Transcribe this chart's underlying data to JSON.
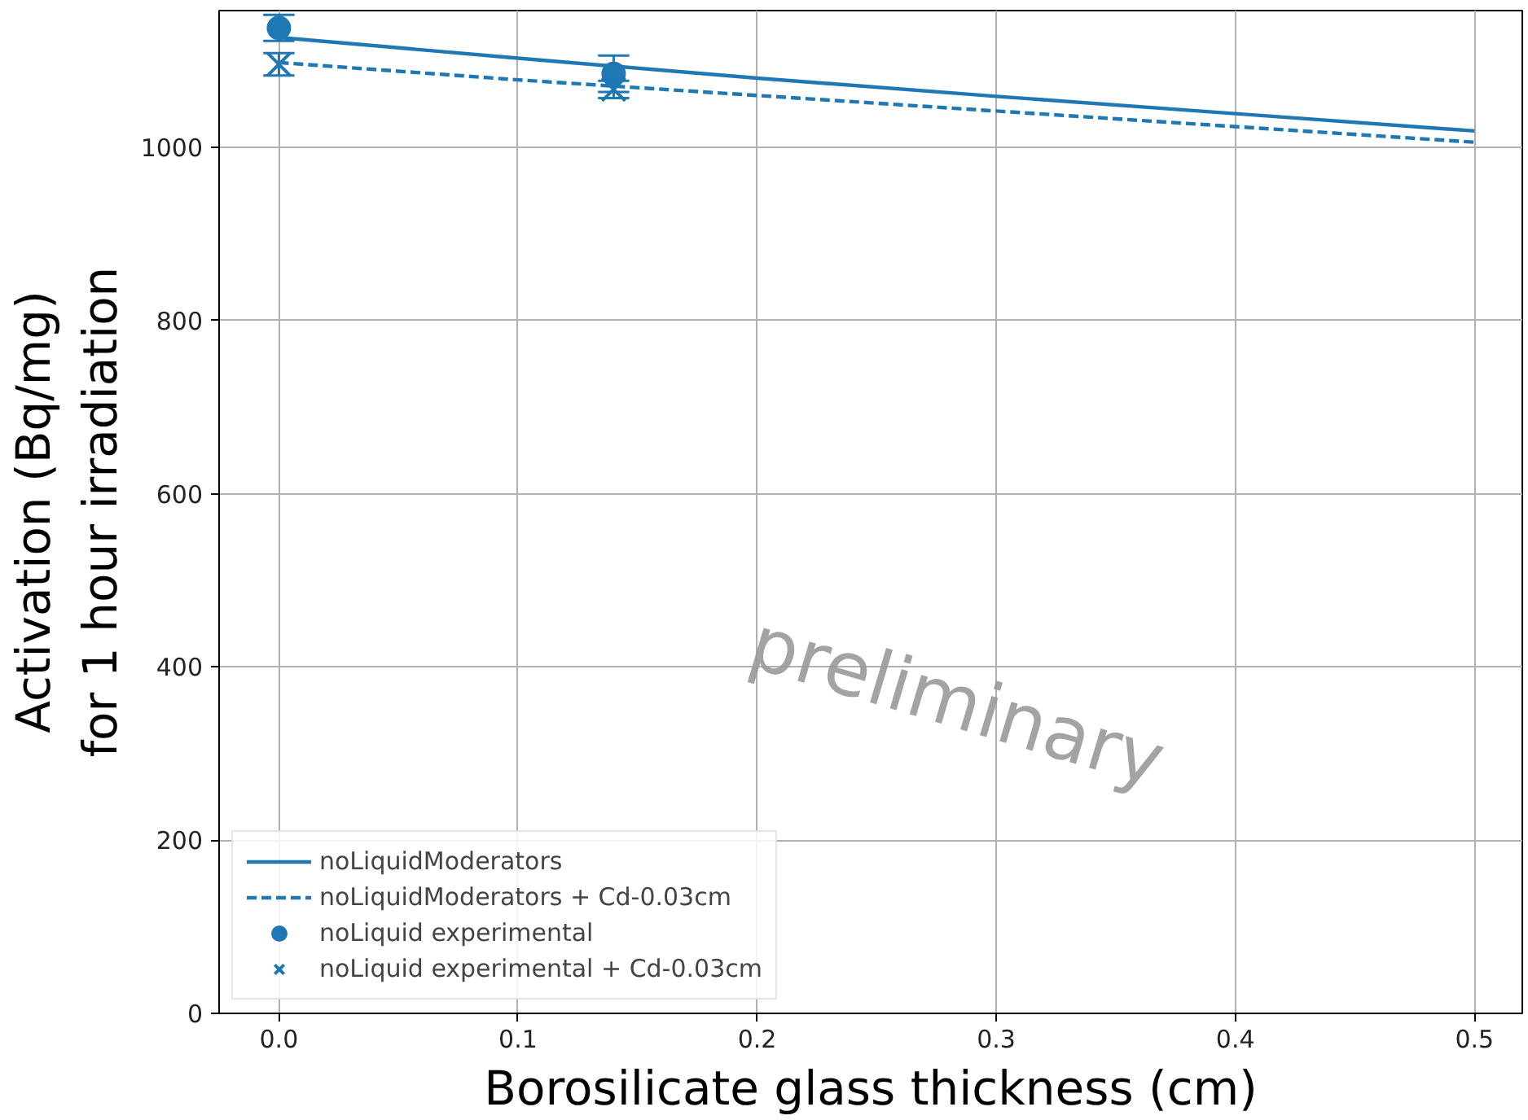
{
  "chart_data": {
    "type": "line",
    "xlabel": "Borosilicate glass thickness (cm)",
    "ylabel": "Activation (Bq/mg)\nfor 1 hour irradiation",
    "xlim": [
      -0.025,
      0.52
    ],
    "ylim": [
      0,
      1158
    ],
    "xticks": [
      {
        "value": 0,
        "label": "0.0"
      },
      0.1,
      0.2,
      0.3,
      0.4,
      0.5
    ],
    "yticks": [
      0,
      200,
      400,
      600,
      800,
      1000
    ],
    "grid": true,
    "legend": "bottom left",
    "annotations": [
      "preliminary"
    ],
    "series": [
      {
        "name": "noLiquidModerators",
        "color": "#1f77b4",
        "line_style": "solid",
        "x": [
          0,
          0.1,
          0.2,
          0.3,
          0.4,
          0.5
        ],
        "values": [
          1127,
          1103,
          1080,
          1059,
          1039,
          1019
        ]
      },
      {
        "name": "noLiquidModerators + Cd-0.03cm",
        "color": "#1f77b4",
        "line_style": "dashed",
        "x": [
          0,
          0.1,
          0.2,
          0.3,
          0.4,
          0.5
        ],
        "values": [
          1098,
          1078,
          1060,
          1042,
          1024,
          1006
        ]
      },
      {
        "name": "noLiquid experimental",
        "type": "scatter",
        "color": "#1f77b4",
        "marker": "circle",
        "x": [
          0,
          0.14
        ],
        "values": [
          1138,
          1085
        ],
        "errors": [
          15,
          21
        ]
      },
      {
        "name": "noLiquid experimental + Cd-0.03cm",
        "type": "scatter",
        "color": "#1f77b4",
        "marker": "cross",
        "x": [
          0,
          0.14
        ],
        "values": [
          1096,
          1067
        ],
        "errors": [
          13,
          10
        ]
      }
    ]
  }
}
